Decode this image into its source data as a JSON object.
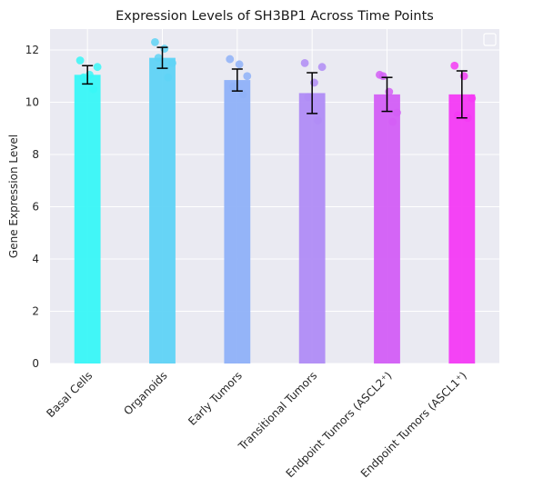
{
  "chart_data": {
    "type": "bar",
    "title": "Expression Levels of SH3BP1 Across Time Points",
    "xlabel": "",
    "ylabel": "Gene Expression Level",
    "ylim": [
      0,
      12.8
    ],
    "yticks": [
      0,
      2,
      4,
      6,
      8,
      10,
      12
    ],
    "ytick_labels": [
      "0",
      "2",
      "4",
      "6",
      "8",
      "10",
      "12"
    ],
    "grid": true,
    "legend": "top-right (empty)",
    "categories": [
      "Basal Cells",
      "Organoids",
      "Early Tumors",
      "Transitional Tumors",
      "Endpoint Tumors (ASCL2⁺)",
      "Endpoint Tumors (ASCL1⁺)"
    ],
    "values": [
      11.05,
      11.7,
      10.85,
      10.35,
      10.3,
      10.3
    ],
    "error": [
      0.35,
      0.4,
      0.42,
      0.78,
      0.65,
      0.9
    ],
    "colors": [
      "#38f7f7",
      "#5fd3f6",
      "#8fb1f8",
      "#b08cf6",
      "#d35ef6",
      "#f43af4"
    ],
    "points": [
      [
        11.6,
        10.5,
        11.05,
        11.35,
        10.95
      ],
      [
        12.3,
        10.95,
        12.05,
        11.5,
        11.7
      ],
      [
        11.65,
        10.3,
        11.45,
        11.0,
        10.6
      ],
      [
        11.5,
        9.3,
        10.75,
        11.35,
        10.2
      ],
      [
        11.05,
        9.25,
        10.4,
        9.6,
        11.0
      ],
      [
        11.4,
        9.4,
        11.0,
        10.15,
        9.5
      ]
    ]
  }
}
